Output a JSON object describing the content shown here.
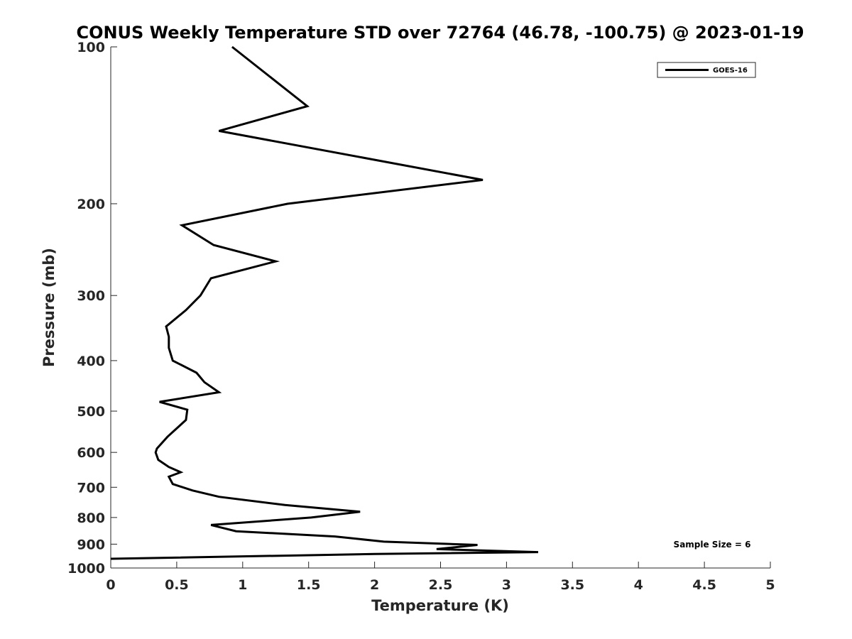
{
  "chart_data": {
    "type": "line",
    "title": "CONUS Weekly Temperature STD over 72764 (46.78, -100.75) @ 2023-01-19",
    "xlabel": "Temperature (K)",
    "ylabel": "Pressure (mb)",
    "xlim": [
      0,
      5
    ],
    "ylim": [
      100,
      1000
    ],
    "y_scale": "log",
    "y_reversed": true,
    "grid": false,
    "legend_position": "top-right",
    "x_ticks": [
      0,
      0.5,
      1,
      1.5,
      2,
      2.5,
      3,
      3.5,
      4,
      4.5,
      5
    ],
    "x_tick_labels": [
      "0",
      "0.5",
      "1",
      "1.5",
      "2",
      "2.5",
      "3",
      "3.5",
      "4",
      "4.5",
      "5"
    ],
    "y_ticks": [
      100,
      200,
      300,
      400,
      500,
      600,
      700,
      800,
      900,
      1000
    ],
    "y_tick_labels": [
      "100",
      "200",
      "300",
      "400",
      "500",
      "600",
      "700",
      "800",
      "900",
      "1000"
    ],
    "series": [
      {
        "name": "GOES-16",
        "color": "#000000",
        "x": [
          0.92,
          1.49,
          0.82,
          2.82,
          1.34,
          0.54,
          0.78,
          1.25,
          0.76,
          0.68,
          0.57,
          0.42,
          0.44,
          0.44,
          0.47,
          0.65,
          0.71,
          0.82,
          0.37,
          0.58,
          0.57,
          0.43,
          0.35,
          0.34,
          0.36,
          0.44,
          0.53,
          0.44,
          0.47,
          0.62,
          0.82,
          1.32,
          1.89,
          1.52,
          0.76,
          0.95,
          1.7,
          2.07,
          2.78,
          2.47,
          3.24,
          2.0,
          0.0
        ],
        "y": [
          100,
          130,
          145,
          180,
          200,
          220,
          240,
          258,
          278,
          300,
          320,
          344,
          360,
          378,
          400,
          422,
          440,
          460,
          480,
          497,
          520,
          560,
          590,
          600,
          620,
          640,
          655,
          668,
          690,
          710,
          730,
          757,
          780,
          800,
          827,
          850,
          870,
          890,
          903,
          920,
          932,
          940,
          960
        ]
      }
    ],
    "annotations": [
      "Sample Size = 6"
    ]
  }
}
